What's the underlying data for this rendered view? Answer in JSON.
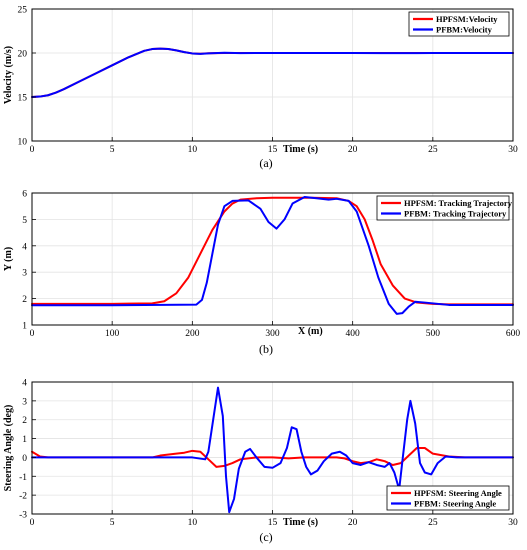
{
  "chart_data": [
    {
      "type": "line",
      "panel_label": "(a)",
      "xlabel": "Time (s)",
      "ylabel": "Velocity (m/s)",
      "xlim": [
        0,
        30
      ],
      "ylim": [
        10,
        25
      ],
      "xticks": [
        0,
        5,
        10,
        15,
        20,
        25,
        30
      ],
      "yticks": [
        10,
        15,
        20,
        25
      ],
      "grid": true,
      "legend_position": "top-right",
      "series": [
        {
          "name": "HPFSM:Velocity",
          "color": "#ff0000",
          "x": [
            0,
            0.5,
            1,
            1.5,
            2,
            3,
            4,
            5,
            6,
            7,
            7.5,
            8,
            8.5,
            9,
            9.5,
            10,
            10.5,
            11,
            12,
            13,
            14,
            16,
            20,
            25,
            30
          ],
          "y": [
            15,
            15.05,
            15.2,
            15.5,
            15.9,
            16.8,
            17.7,
            18.6,
            19.5,
            20.25,
            20.45,
            20.5,
            20.45,
            20.3,
            20.1,
            19.95,
            19.92,
            19.97,
            20.0,
            20.0,
            20.0,
            20.0,
            20.0,
            20.0,
            20.0
          ]
        },
        {
          "name": "PFBM:Velocity",
          "color": "#0000ff",
          "x": [
            0,
            0.5,
            1,
            1.5,
            2,
            3,
            4,
            5,
            6,
            7,
            7.5,
            8,
            8.5,
            9,
            9.5,
            10,
            10.5,
            11,
            12,
            13,
            14,
            16,
            20,
            24,
            25,
            30
          ],
          "y": [
            15,
            15.05,
            15.2,
            15.5,
            15.9,
            16.8,
            17.7,
            18.6,
            19.5,
            20.25,
            20.45,
            20.5,
            20.45,
            20.3,
            20.1,
            19.95,
            19.9,
            19.96,
            20.03,
            19.98,
            20.0,
            20.0,
            20.0,
            19.98,
            20.0,
            20.0
          ]
        }
      ]
    },
    {
      "type": "line",
      "panel_label": "(b)",
      "xlabel": "X (m)",
      "ylabel": "Y (m)",
      "xlim": [
        0,
        600
      ],
      "ylim": [
        1,
        6
      ],
      "xticks": [
        0,
        100,
        200,
        300,
        400,
        500,
        600
      ],
      "yticks": [
        1,
        2,
        3,
        4,
        5,
        6
      ],
      "grid": true,
      "legend_position": "top-right",
      "series": [
        {
          "name": "HPFSM: Tracking Trajectory",
          "color": "#ff0000",
          "x": [
            0,
            100,
            150,
            165,
            180,
            195,
            210,
            225,
            240,
            250,
            260,
            280,
            300,
            350,
            380,
            395,
            405,
            415,
            425,
            435,
            450,
            465,
            480,
            500,
            520,
            600
          ],
          "y": [
            1.8,
            1.8,
            1.82,
            1.9,
            2.2,
            2.8,
            3.7,
            4.6,
            5.3,
            5.6,
            5.75,
            5.8,
            5.82,
            5.82,
            5.8,
            5.7,
            5.5,
            5.0,
            4.2,
            3.3,
            2.5,
            2.0,
            1.85,
            1.8,
            1.78,
            1.78
          ]
        },
        {
          "name": "PFBM: Tracking Trajectory",
          "color": "#0000ff",
          "x": [
            0,
            100,
            205,
            212,
            218,
            225,
            232,
            240,
            250,
            270,
            285,
            295,
            305,
            315,
            325,
            340,
            355,
            370,
            380,
            395,
            405,
            420,
            432,
            445,
            455,
            462,
            470,
            478,
            490,
            520,
            600
          ],
          "y": [
            1.75,
            1.75,
            1.77,
            1.95,
            2.6,
            3.7,
            4.8,
            5.5,
            5.7,
            5.72,
            5.4,
            4.9,
            4.65,
            5.0,
            5.6,
            5.85,
            5.8,
            5.75,
            5.78,
            5.7,
            5.3,
            4.0,
            2.8,
            1.8,
            1.42,
            1.45,
            1.7,
            1.88,
            1.85,
            1.76,
            1.76
          ]
        }
      ]
    },
    {
      "type": "line",
      "panel_label": "(c)",
      "xlabel": "Time (s)",
      "ylabel": "Steering Angle (deg)",
      "xlim": [
        0,
        30
      ],
      "ylim": [
        -3,
        4
      ],
      "xticks": [
        0,
        5,
        10,
        15,
        20,
        25,
        30
      ],
      "yticks": [
        -3,
        -2,
        -1,
        0,
        1,
        2,
        3,
        4
      ],
      "grid": true,
      "legend_position": "bottom-right",
      "series": [
        {
          "name": "HPFSM: Steering Angle",
          "color": "#ff0000",
          "x": [
            0,
            0.5,
            1,
            7.5,
            8,
            9,
            9.5,
            10,
            10.5,
            11,
            11.5,
            12,
            12.5,
            13,
            14,
            15,
            16,
            17,
            19,
            19.5,
            20,
            20.5,
            21,
            21.5,
            22,
            22.5,
            23,
            23.5,
            24,
            24.5,
            25,
            26,
            27,
            30
          ],
          "y": [
            0.3,
            0.05,
            0.0,
            0.0,
            0.1,
            0.2,
            0.25,
            0.35,
            0.3,
            -0.1,
            -0.5,
            -0.45,
            -0.3,
            -0.1,
            0.0,
            0.0,
            -0.05,
            0.0,
            0.0,
            -0.05,
            -0.2,
            -0.3,
            -0.25,
            -0.1,
            -0.2,
            -0.4,
            -0.3,
            0.1,
            0.5,
            0.5,
            0.2,
            0.05,
            0.0,
            0.0
          ]
        },
        {
          "name": "PFBM: Steering Angle",
          "color": "#0000ff",
          "x": [
            0,
            10,
            10.8,
            11,
            11.3,
            11.6,
            11.9,
            12.1,
            12.3,
            12.6,
            12.9,
            13.3,
            13.6,
            14,
            14.5,
            15,
            15.5,
            15.9,
            16.2,
            16.5,
            16.8,
            17.1,
            17.4,
            17.8,
            18.2,
            18.7,
            19.2,
            19.6,
            20,
            20.5,
            21,
            21.5,
            22,
            22.3,
            22.6,
            22.9,
            23.1,
            23.4,
            23.6,
            23.9,
            24.2,
            24.5,
            24.9,
            25.3,
            25.8,
            26.5,
            27,
            30
          ],
          "y": [
            0.0,
            0.0,
            -0.1,
            0.3,
            2.0,
            3.7,
            2.2,
            -1.0,
            -2.9,
            -2.2,
            -0.6,
            0.3,
            0.45,
            0.0,
            -0.5,
            -0.55,
            -0.3,
            0.5,
            1.6,
            1.5,
            0.3,
            -0.5,
            -0.9,
            -0.7,
            -0.2,
            0.2,
            0.3,
            0.1,
            -0.3,
            -0.4,
            -0.25,
            -0.4,
            -0.5,
            -0.3,
            -0.8,
            -1.7,
            -0.2,
            2.0,
            3.0,
            1.8,
            -0.3,
            -0.8,
            -0.9,
            -0.3,
            0.05,
            0.0,
            0.0,
            0.0
          ]
        }
      ]
    }
  ]
}
